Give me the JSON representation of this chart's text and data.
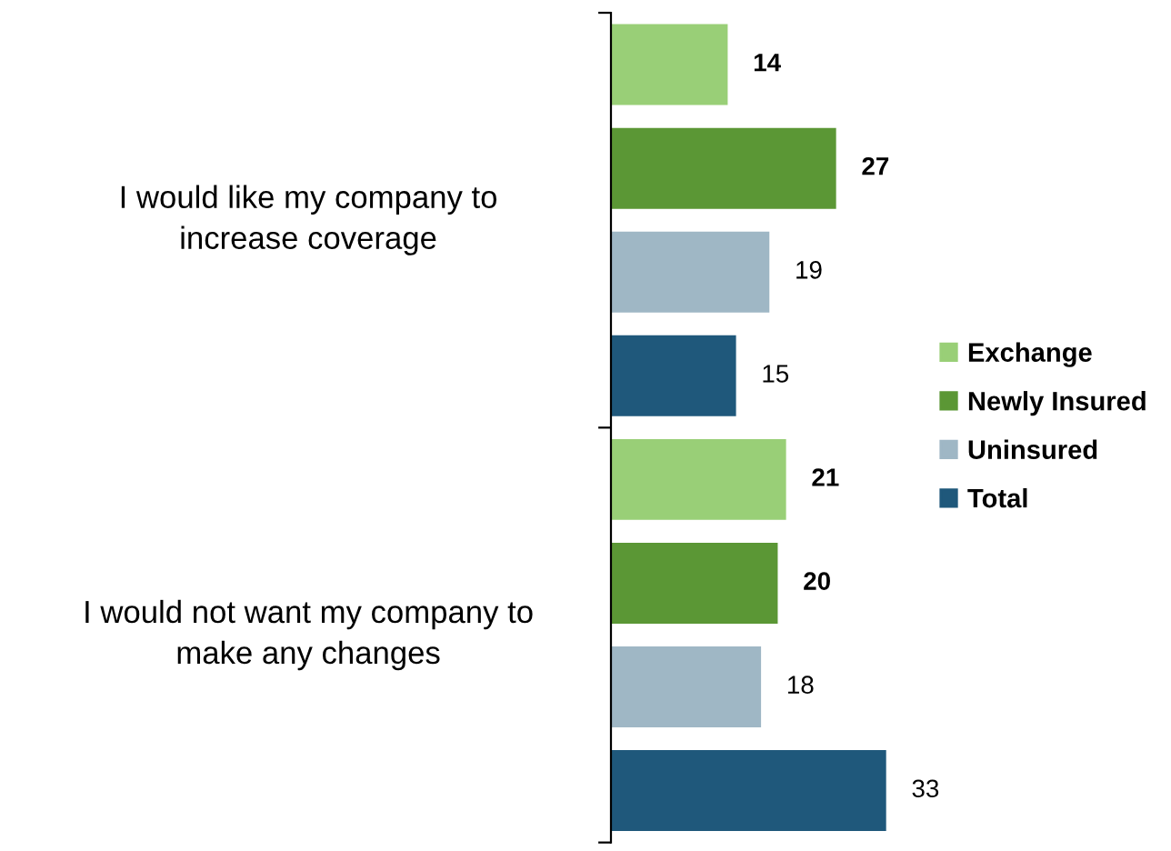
{
  "chart_data": {
    "type": "bar",
    "orientation": "horizontal",
    "categories": [
      "I would like my company to increase coverage",
      "I would not want my company to make any changes"
    ],
    "series": [
      {
        "name": "Exchange",
        "color": "#99cf77",
        "values": [
          14,
          21
        ]
      },
      {
        "name": "Newly Insured",
        "color": "#5b9735",
        "values": [
          27,
          20
        ]
      },
      {
        "name": "Uninsured",
        "color": "#9fb7c5",
        "values": [
          19,
          18
        ]
      },
      {
        "name": "Total",
        "color": "#1f587b",
        "values": [
          15,
          33
        ]
      }
    ],
    "data_labels": true,
    "legend": "right",
    "grid": false
  }
}
